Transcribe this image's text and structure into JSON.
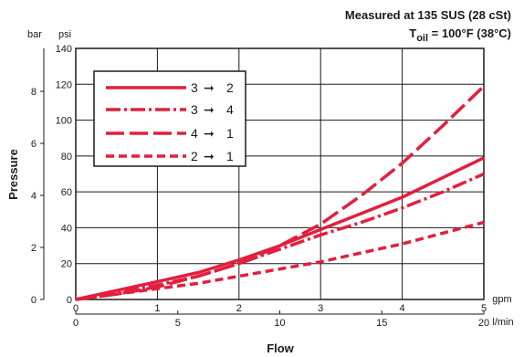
{
  "chart_data": {
    "type": "line",
    "annotation": {
      "line1": "Measured at 135 SUS (28 cSt)",
      "line2_prefix": "T",
      "line2_sub": "oil",
      "line2_suffix": " = 100°F (38°C)"
    },
    "xlabel": "Flow",
    "ylabel": "Pressure",
    "x_primary": {
      "unit": "gpm",
      "range": [
        0,
        5
      ],
      "ticks": [
        "0",
        "1",
        "2",
        "3",
        "4",
        "5"
      ]
    },
    "x_secondary": {
      "unit": "l/min",
      "range": [
        0,
        20
      ],
      "ticks": [
        "0",
        "5",
        "10",
        "15",
        "20"
      ]
    },
    "y_primary": {
      "unit": "psi",
      "range": [
        0,
        140
      ],
      "ticks": [
        "0",
        "20",
        "40",
        "60",
        "80",
        "100",
        "120",
        "140"
      ]
    },
    "y_secondary": {
      "unit": "bar",
      "range": [
        0,
        9.65
      ],
      "ticks": [
        "0",
        "2",
        "4",
        "6",
        "8"
      ]
    },
    "grid": true,
    "legend_position": "top-left",
    "series": [
      {
        "name_from": "3",
        "name_to": "2",
        "arrow": "➞",
        "style": "solid",
        "color": "#e21f3d",
        "x": [
          0,
          0.5,
          1,
          1.5,
          2,
          2.5,
          3,
          3.5,
          4,
          4.5,
          5
        ],
        "y": [
          0,
          5,
          10,
          15,
          22,
          30,
          39,
          48,
          57,
          68,
          79
        ]
      },
      {
        "name_from": "3",
        "name_to": "4",
        "arrow": "➞",
        "style": "dashdot",
        "color": "#e21f3d",
        "x": [
          0,
          0.5,
          1,
          1.5,
          2,
          2.5,
          3,
          3.5,
          4,
          4.5,
          5
        ],
        "y": [
          0,
          4,
          8,
          13,
          20,
          28,
          36,
          43,
          51,
          60,
          70
        ]
      },
      {
        "name_from": "4",
        "name_to": "1",
        "arrow": "➞",
        "style": "longdash",
        "color": "#e21f3d",
        "x": [
          0,
          0.5,
          1,
          1.5,
          2,
          2.5,
          3,
          3.5,
          4,
          4.5,
          5
        ],
        "y": [
          0,
          3,
          7,
          13,
          20,
          30,
          42,
          58,
          76,
          97,
          119
        ]
      },
      {
        "name_from": "2",
        "name_to": "1",
        "arrow": "➞",
        "style": "shortdash",
        "color": "#e21f3d",
        "x": [
          0,
          0.5,
          1,
          1.5,
          2,
          2.5,
          3,
          3.5,
          4,
          4.5,
          5
        ],
        "y": [
          0,
          3,
          6,
          9,
          13,
          17,
          21,
          26,
          31,
          37,
          43
        ]
      }
    ]
  }
}
